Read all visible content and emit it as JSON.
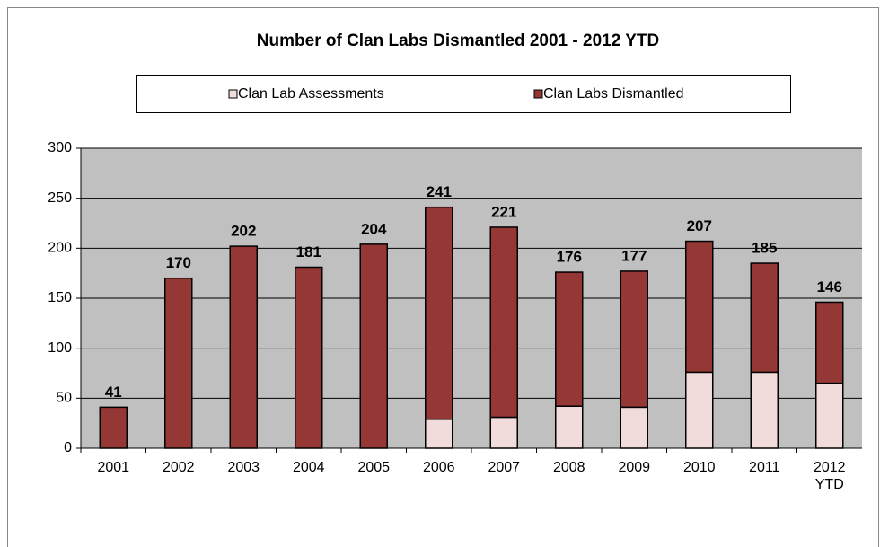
{
  "chart_data": {
    "type": "stacked_bar",
    "title": "Number of Clan Labs Dismantled 2001 -  2012 YTD",
    "categories": [
      "2001",
      "2002",
      "2003",
      "2004",
      "2005",
      "2006",
      "2007",
      "2008",
      "2009",
      "2010",
      "2011",
      "2012 YTD"
    ],
    "series": [
      {
        "name": "Clan Lab Assessments",
        "color": "#f2dcdb",
        "values": [
          0,
          0,
          0,
          0,
          0,
          29,
          31,
          42,
          41,
          76,
          76,
          65
        ]
      },
      {
        "name": "Clan Labs Dismantled",
        "color": "#953735",
        "values": [
          41,
          170,
          202,
          181,
          204,
          212,
          190,
          134,
          136,
          131,
          109,
          81
        ]
      }
    ],
    "totals": [
      41,
      170,
      202,
      181,
      204,
      241,
      221,
      176,
      177,
      207,
      185,
      146
    ],
    "ylim": [
      0,
      300
    ],
    "yticks": [
      0,
      50,
      100,
      150,
      200,
      250,
      300
    ],
    "grid": true,
    "legend": "top"
  }
}
